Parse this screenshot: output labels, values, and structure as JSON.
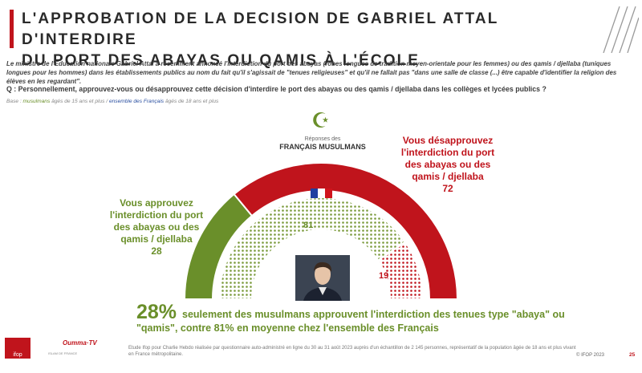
{
  "header": {
    "title_line1": "L'APPROBATION DE LA DECISION DE GABRIEL ATTAL D'INTERDIRE",
    "title_line2": "DU PORT DES ABAYAS OU QAMIS À L'ÉCOLE"
  },
  "intro": "Le ministre de l'Education nationale Gabriel Attal a récemment annoncé l'interdiction du port des abayas (robes longues de tradition moyen-orientale pour les femmes) ou des qamis / djellaba (tuniques longues pour les hommes) dans les établissements publics au nom du fait qu'il s'agissait de \"tenues religieuses\" et qu'il ne fallait pas \"dans une salle de classe (...) être capable d'identifier la religion des élèves en les regardant\".",
  "question": "Q : Personnellement, approuvez-vous ou désapprouvez cette décision d'interdire le port des abayas ou des qamis / djellaba dans les collèges et lycées publics ?",
  "base": {
    "prefix": "Base : ",
    "muslims": "musulmans",
    "muslims_desc": " âgés de 15 ans et plus / ",
    "all": "ensemble des Français",
    "all_desc": " âgés de 18 ans et plus"
  },
  "respondents": {
    "small": "Réponses des",
    "big": "FRANÇAIS MUSULMANS"
  },
  "labels": {
    "approve": "Vous approuvez l'interdiction du port des abayas ou des qamis / djellaba",
    "approve_value": "28",
    "disapprove": "Vous désapprouvez l'interdiction du port des abayas ou des qamis / djellaba",
    "disapprove_value": "72",
    "inner_approve_value": "81",
    "inner_disapprove_value": "19"
  },
  "chart_data": {
    "type": "pie",
    "subtype": "semicircle-donut",
    "series": [
      {
        "name": "FRANÇAIS MUSULMANS",
        "ring": "outer",
        "slices": [
          {
            "label": "Vous approuvez",
            "value": 28
          },
          {
            "label": "Vous désapprouvez",
            "value": 72
          }
        ]
      },
      {
        "ring": "inner",
        "slices": [
          {
            "label": "Vous approuvez",
            "value": 81
          },
          {
            "label": "Vous désapprouvez",
            "value": 19
          }
        ]
      }
    ],
    "colors": {
      "approve": "#6a8f2a",
      "disapprove": "#c0141c"
    }
  },
  "conclusion": {
    "pct": "28%",
    "text1": "seulement des musulmans approuvent l'interdiction des tenues type \"abaya\" ou",
    "text2": "\"qamis\", contre 81% en moyenne chez l'ensemble des Français"
  },
  "footer": {
    "logo_ifop": "ifop",
    "logo_ctv": "Oumma·TV",
    "logo_ctv_sub": "ISLAM DE FRANCE",
    "note": "Etude Ifop pour Charlie Hebdo réalisée par questionnaire auto-administré en ligne du 30 au 31 août 2023 auprès d'un échantillon de 2 145 personnes, représentatif de la population âgée de 18 ans et plus vivant en France métropolitaine.",
    "copyright": "© IFOP 2023",
    "page": "25"
  }
}
